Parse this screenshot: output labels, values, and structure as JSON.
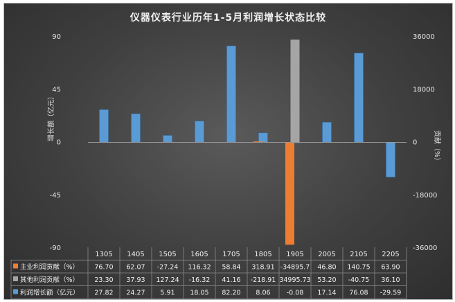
{
  "chart_data": {
    "type": "bar",
    "title": "仪器仪表行业历年1-5月利润增长状态比较",
    "ylabel": "增长额（亿元）",
    "y2label": "贡献（%）",
    "ylim": [
      -90,
      90
    ],
    "y_ticks": [
      "90",
      "45",
      "0",
      "-45",
      "-90"
    ],
    "y2lim": [
      -36000,
      36000
    ],
    "y2_ticks": [
      "36000",
      "18000",
      "0",
      "-18000",
      "-36000"
    ],
    "categories": [
      "1305",
      "1405",
      "1505",
      "1605",
      "1705",
      "1805",
      "1905",
      "2005",
      "2105",
      "2205"
    ],
    "series": [
      {
        "name": "主业利润贡献（%）",
        "axis": "right",
        "color": "#ed7d31",
        "values": [
          76.7,
          62.07,
          -27.24,
          116.32,
          58.84,
          318.91,
          -34895.7,
          46.8,
          140.75,
          63.9
        ],
        "labels": [
          "76.70",
          "62.07",
          "-27.24",
          "116.32",
          "58.84",
          "318.91",
          "-34895.7",
          "46.80",
          "140.75",
          "63.90"
        ]
      },
      {
        "name": "其他利润贡献（%）",
        "axis": "right",
        "color": "#a5a5a5",
        "values": [
          23.3,
          37.93,
          127.24,
          -16.32,
          41.16,
          -218.91,
          34995.73,
          53.2,
          -40.75,
          36.1
        ],
        "labels": [
          "23.30",
          "37.93",
          "127.24",
          "-16.32",
          "41.16",
          "-218.91",
          "34995.73",
          "53.20",
          "-40.75",
          "36.10"
        ]
      },
      {
        "name": "利润增长额（亿元）",
        "axis": "left",
        "color": "#5b9bd5",
        "values": [
          27.82,
          24.27,
          5.91,
          18.05,
          82.2,
          8.06,
          -0.08,
          17.14,
          76.08,
          -29.59
        ],
        "labels": [
          "27.82",
          "24.27",
          "5.91",
          "18.05",
          "82.20",
          "8.06",
          "-0.08",
          "17.14",
          "76.08",
          "-29.59"
        ]
      }
    ],
    "legend": "data-table"
  }
}
